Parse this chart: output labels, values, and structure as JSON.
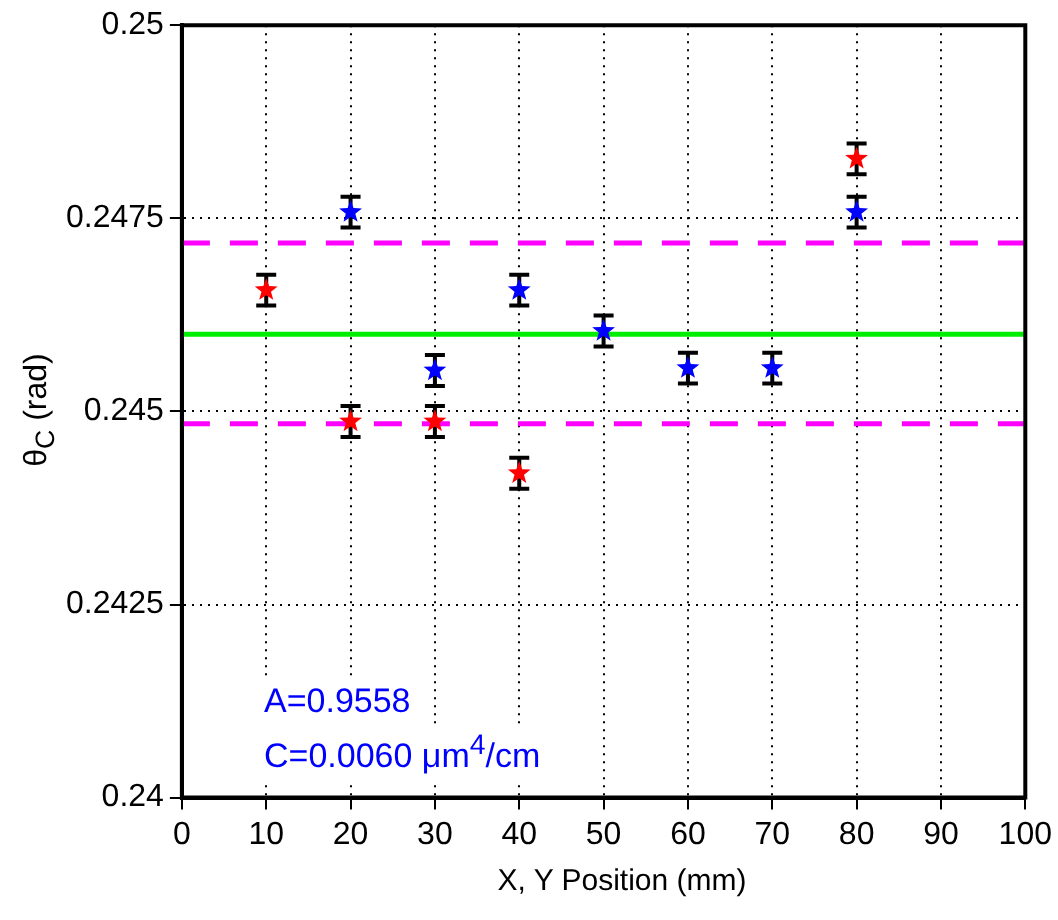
{
  "chart_data": {
    "type": "scatter",
    "xlabel": "X, Y Position (mm)",
    "ylabel": "θ$_{C}$ (rad)",
    "xlim": [
      0,
      100
    ],
    "xticks": [
      0,
      10,
      20,
      30,
      40,
      50,
      60,
      70,
      80,
      90,
      100
    ],
    "ylim": [
      0.24,
      0.25
    ],
    "yticks": [
      0.24,
      0.2425,
      0.245,
      0.2475,
      0.25
    ],
    "grid": true,
    "marker": "star",
    "series": [
      {
        "color": "#ff0000",
        "x": [
          10,
          20,
          30,
          40,
          80
        ],
        "values": [
          0.24657,
          0.24487,
          0.24487,
          0.2442,
          0.24827
        ],
        "errors": [
          0.0002,
          0.0002,
          0.0002,
          0.0002,
          0.0002
        ]
      },
      {
        "color": "#0000ff",
        "x": [
          20,
          30,
          40,
          50,
          60,
          70,
          80
        ],
        "values": [
          0.24758,
          0.24553,
          0.24657,
          0.24604,
          0.24556,
          0.24556,
          0.24758
        ],
        "errors": [
          0.0002,
          0.0002,
          0.0002,
          0.0002,
          0.0002,
          0.0002,
          0.0002
        ]
      }
    ],
    "ref_lines": [
      {
        "axis": "y",
        "value": 0.246,
        "color": "#00ee00",
        "line_style": "solid"
      },
      {
        "axis": "y",
        "value": 0.24718,
        "color": "#ff00ff",
        "line_style": "dashed"
      },
      {
        "axis": "y",
        "value": 0.24484,
        "color": "#ff00ff",
        "line_style": "dashed"
      }
    ],
    "annotations": [
      "A=0.9558",
      "C=0.0060 μm$^{4}$/cm"
    ]
  }
}
